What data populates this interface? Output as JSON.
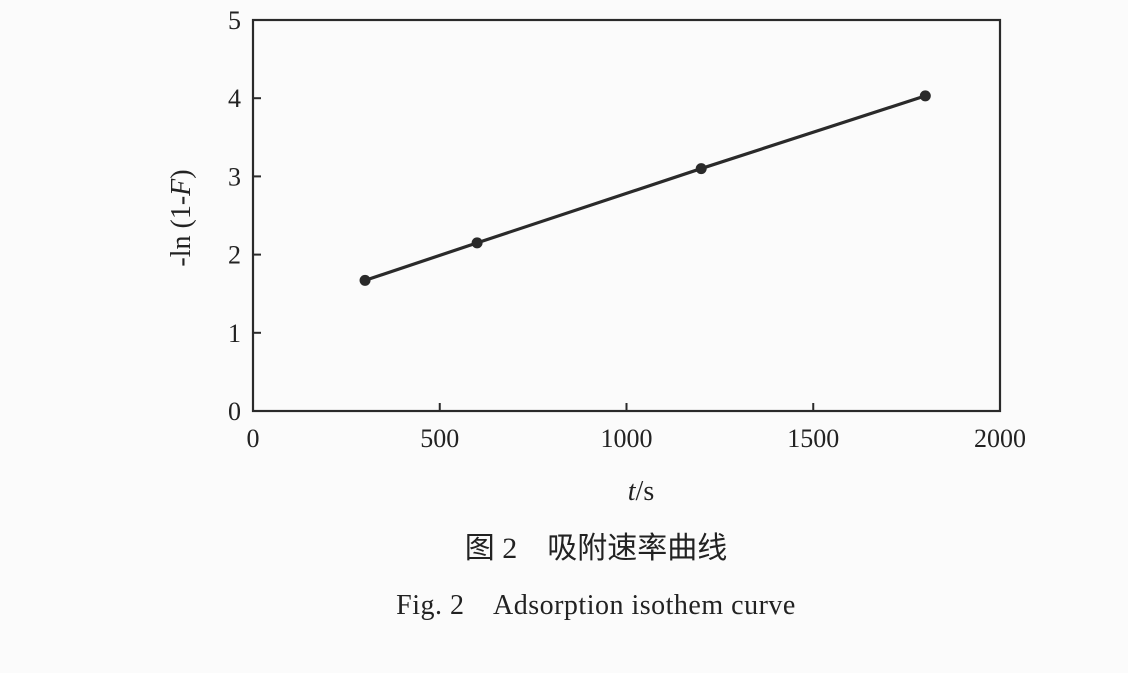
{
  "chart_data": {
    "type": "line",
    "x": [
      300,
      600,
      1200,
      1800
    ],
    "series": [
      {
        "values": [
          1.67,
          2.15,
          3.1,
          4.03
        ]
      }
    ],
    "xlabel": "t/s",
    "ylabel": "-ln (1-F)",
    "xlim": [
      0,
      2000
    ],
    "ylim": [
      0,
      5
    ],
    "xticks": [
      0,
      500,
      1000,
      1500,
      2000
    ],
    "yticks": [
      0,
      1,
      2,
      3,
      4,
      5
    ],
    "grid": false,
    "legend": "none",
    "line_color": "#2a2a2a"
  },
  "caption": {
    "chinese": "图 2    吸附速率曲线",
    "english": "Fig. 2    Adsorption isothem curve"
  }
}
